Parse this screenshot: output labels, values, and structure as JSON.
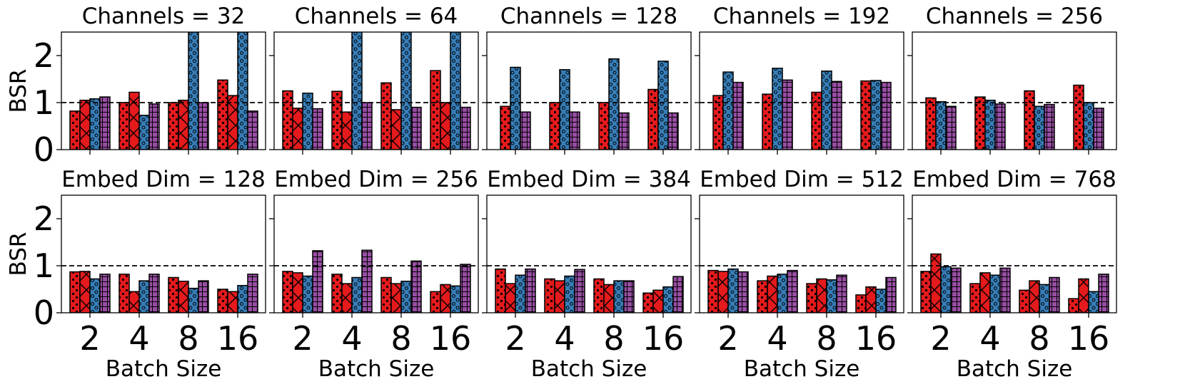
{
  "chart_data": {
    "type": "bar",
    "title": "",
    "ylabel": "BSR",
    "xlabel": "Batch Size",
    "ylim": [
      0,
      2.5
    ],
    "yticks": [
      0,
      1,
      2
    ],
    "categories": [
      "2",
      "4",
      "8",
      "16"
    ],
    "reference_line": 1.0,
    "series_styles": [
      {
        "index": 0,
        "color": "#e41a1c",
        "hatch": "dots"
      },
      {
        "index": 1,
        "color": "#e41a1c",
        "hatch": "cross"
      },
      {
        "index": 2,
        "color": "#377eb8",
        "hatch": "circles"
      },
      {
        "index": 3,
        "color": "#984ea3",
        "hatch": "grid"
      }
    ],
    "panels": [
      {
        "title": "Channels = 32",
        "row": 0,
        "col": 0,
        "series_index": [
          0,
          1,
          2,
          3
        ],
        "values": [
          [
            0.82,
            1.05,
            1.08,
            1.12
          ],
          [
            1.0,
            1.22,
            0.73,
            0.97
          ],
          [
            1.0,
            1.05,
            2.5,
            1.0
          ],
          [
            1.48,
            1.15,
            2.5,
            0.82
          ]
        ]
      },
      {
        "title": "Channels = 64",
        "row": 0,
        "col": 1,
        "series_index": [
          0,
          1,
          2,
          3
        ],
        "values": [
          [
            1.25,
            0.88,
            1.2,
            0.87
          ],
          [
            1.24,
            0.8,
            2.5,
            1.0
          ],
          [
            1.42,
            0.85,
            2.5,
            0.9
          ],
          [
            1.68,
            1.0,
            2.5,
            0.9
          ]
        ]
      },
      {
        "title": "Channels = 128",
        "row": 0,
        "col": 2,
        "series_index": [
          0,
          2,
          3
        ],
        "values": [
          [
            0.92,
            1.75,
            0.8
          ],
          [
            1.0,
            1.7,
            0.8
          ],
          [
            1.0,
            1.93,
            0.78
          ],
          [
            1.28,
            1.88,
            0.78
          ]
        ]
      },
      {
        "title": "Channels = 192",
        "row": 0,
        "col": 3,
        "series_index": [
          0,
          2,
          3
        ],
        "values": [
          [
            1.15,
            1.65,
            1.43
          ],
          [
            1.18,
            1.73,
            1.48
          ],
          [
            1.22,
            1.67,
            1.45
          ],
          [
            1.46,
            1.47,
            1.43
          ]
        ]
      },
      {
        "title": "Channels = 256",
        "row": 0,
        "col": 4,
        "series_index": [
          0,
          2,
          3
        ],
        "values": [
          [
            1.1,
            1.02,
            0.92
          ],
          [
            1.12,
            1.05,
            0.97
          ],
          [
            1.25,
            0.92,
            0.96
          ],
          [
            1.37,
            1.0,
            0.88
          ]
        ]
      },
      {
        "title": "Embed Dim = 128",
        "row": 1,
        "col": 0,
        "series_index": [
          0,
          1,
          2,
          3
        ],
        "values": [
          [
            0.87,
            0.88,
            0.72,
            0.82
          ],
          [
            0.82,
            0.45,
            0.68,
            0.82
          ],
          [
            0.75,
            0.67,
            0.52,
            0.68
          ],
          [
            0.5,
            0.45,
            0.58,
            0.82
          ]
        ]
      },
      {
        "title": "Embed Dim = 256",
        "row": 1,
        "col": 1,
        "series_index": [
          0,
          1,
          2,
          3
        ],
        "values": [
          [
            0.88,
            0.85,
            0.78,
            1.32
          ],
          [
            0.82,
            0.62,
            0.75,
            1.33
          ],
          [
            0.75,
            0.62,
            0.67,
            1.1
          ],
          [
            0.45,
            0.6,
            0.57,
            1.03
          ]
        ]
      },
      {
        "title": "Embed Dim = 384",
        "row": 1,
        "col": 2,
        "series_index": [
          0,
          1,
          2,
          3
        ],
        "values": [
          [
            0.93,
            0.62,
            0.8,
            0.93
          ],
          [
            0.72,
            0.68,
            0.78,
            0.92
          ],
          [
            0.72,
            0.6,
            0.68,
            0.68
          ],
          [
            0.42,
            0.48,
            0.55,
            0.77
          ]
        ]
      },
      {
        "title": "Embed Dim = 512",
        "row": 1,
        "col": 3,
        "series_index": [
          0,
          1,
          2,
          3
        ],
        "values": [
          [
            0.9,
            0.88,
            0.93,
            0.87
          ],
          [
            0.68,
            0.78,
            0.82,
            0.9
          ],
          [
            0.62,
            0.72,
            0.7,
            0.8
          ],
          [
            0.38,
            0.55,
            0.5,
            0.75
          ]
        ]
      },
      {
        "title": "Embed Dim = 768",
        "row": 1,
        "col": 4,
        "series_index": [
          0,
          1,
          2,
          3
        ],
        "values": [
          [
            0.88,
            1.25,
            0.98,
            0.95
          ],
          [
            0.62,
            0.85,
            0.8,
            0.95
          ],
          [
            0.48,
            0.68,
            0.6,
            0.75
          ],
          [
            0.3,
            0.72,
            0.45,
            0.82
          ]
        ]
      }
    ]
  }
}
